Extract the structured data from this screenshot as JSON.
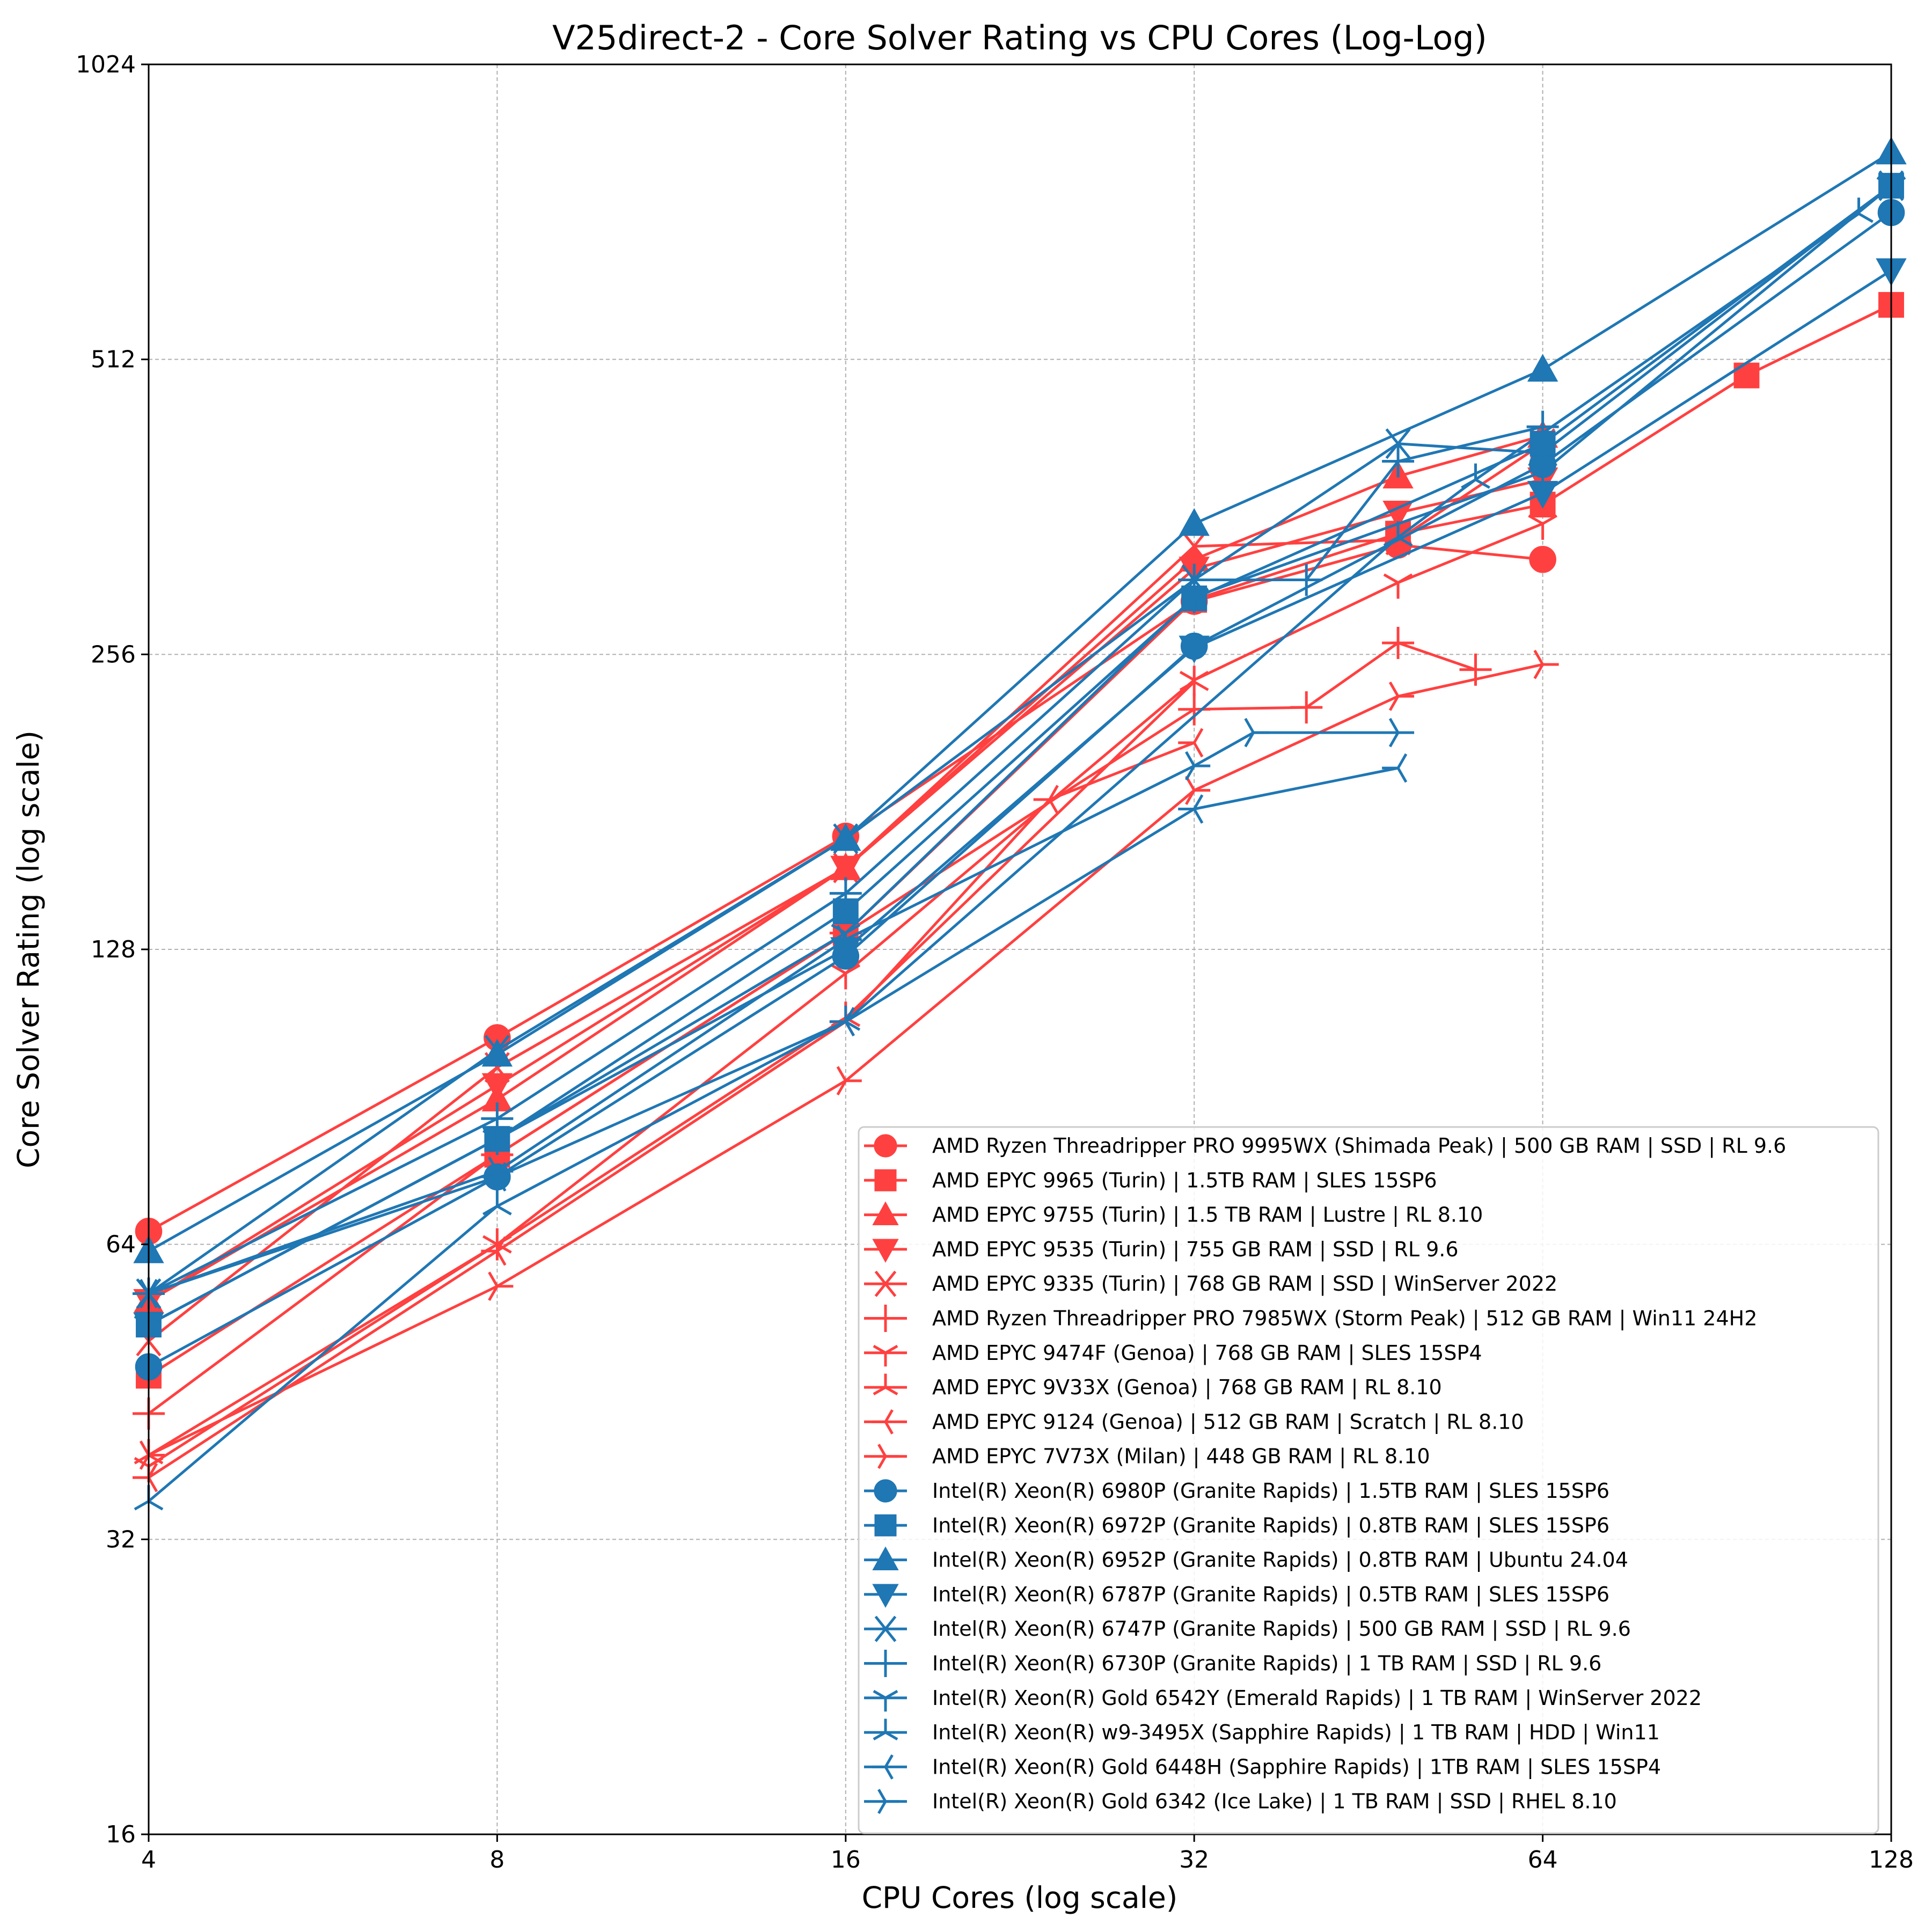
{
  "chart_data": {
    "type": "line",
    "title": "V25direct-2 - Core Solver Rating vs CPU Cores (Log-Log)",
    "xlabel": "CPU Cores (log scale)",
    "ylabel": "Core Solver Rating (log scale)",
    "xscale": "log2",
    "yscale": "log2",
    "xlim": [
      4,
      128
    ],
    "ylim": [
      16,
      1024
    ],
    "xticks": [
      4,
      8,
      16,
      32,
      64,
      128
    ],
    "yticks": [
      16,
      32,
      64,
      128,
      256,
      512,
      1024
    ],
    "grid": true,
    "legend_position": "lower-right",
    "colors": {
      "amd": "#ff4040",
      "intel": "#1f77b4"
    },
    "series": [
      {
        "name": "AMD Ryzen Threadripper PRO 9995WX (Shimada Peak) | 500 GB RAM | SSD | RL 9.6",
        "vendor": "amd",
        "marker": "circle",
        "x": [
          4,
          8,
          16,
          32,
          48,
          64
        ],
        "y": [
          66,
          104,
          167,
          290,
          331,
          320
        ]
      },
      {
        "name": "AMD EPYC 9965 (Turin) | 1.5TB RAM | SLES 15SP6",
        "vendor": "amd",
        "marker": "square",
        "x": [
          4,
          8,
          16,
          32,
          48,
          64,
          96,
          128
        ],
        "y": [
          47,
          79,
          133,
          291,
          340,
          364,
          493,
          582
        ]
      },
      {
        "name": "AMD EPYC 9755 (Turin) | 1.5 TB RAM | Lustre | RL 8.10",
        "vendor": "amd",
        "marker": "triangle-up",
        "x": [
          4,
          8,
          16,
          32,
          48,
          64
        ],
        "y": [
          56,
          90,
          155,
          320,
          389,
          428
        ]
      },
      {
        "name": "AMD EPYC 9535 (Turin) | 755 GB RAM | SSD | RL 9.6",
        "vendor": "amd",
        "marker": "triangle-down",
        "x": [
          4,
          8,
          16,
          32,
          48,
          64
        ],
        "y": [
          56,
          93,
          155,
          313,
          357,
          386
        ]
      },
      {
        "name": "AMD EPYC 9335 (Turin) | 768 GB RAM | SSD | WinServer 2022",
        "vendor": "amd",
        "marker": "x",
        "x": [
          4,
          8,
          16,
          32,
          48,
          64
        ],
        "y": [
          51,
          97,
          155,
          330,
          335,
          420
        ]
      },
      {
        "name": "AMD Ryzen Threadripper PRO 7985WX (Storm Peak) | 512 GB RAM | Win11 24H2",
        "vendor": "amd",
        "marker": "plus",
        "x": [
          4,
          8,
          16,
          32,
          40,
          48,
          56
        ],
        "y": [
          43,
          79,
          133,
          225,
          226,
          263,
          247
        ]
      },
      {
        "name": "AMD EPYC 9474F (Genoa) | 768 GB RAM | SLES 15SP4",
        "vendor": "amd",
        "marker": "tri-down",
        "x": [
          4,
          8,
          16,
          32,
          48,
          64
        ],
        "y": [
          38,
          64,
          121,
          241,
          303,
          348
        ]
      },
      {
        "name": "AMD EPYC 9V33X (Genoa) | 768 GB RAM | RL 8.10",
        "vendor": "amd",
        "marker": "tri-up",
        "x": [
          4,
          8,
          16,
          32
        ],
        "y": [
          39,
          64,
          109,
          240
        ]
      },
      {
        "name": "AMD EPYC 9124 (Genoa) | 512 GB RAM | Scratch | RL 8.10",
        "vendor": "amd",
        "marker": "tri-left",
        "x": [
          4,
          8,
          16,
          24,
          32
        ],
        "y": [
          37,
          63,
          108,
          182,
          208
        ]
      },
      {
        "name": "AMD EPYC 7V73X (Milan) | 448 GB RAM | RL 8.10",
        "vendor": "amd",
        "marker": "tri-right",
        "x": [
          4,
          8,
          16,
          32,
          48,
          64
        ],
        "y": [
          39,
          58,
          94,
          186,
          232,
          250
        ]
      },
      {
        "name": "Intel(R) Xeon(R) 6980P (Granite Rapids) | 1.5TB RAM | SLES 15SP6",
        "vendor": "intel",
        "marker": "circle",
        "x": [
          4,
          8,
          16,
          32,
          64,
          128
        ],
        "y": [
          48,
          75,
          126,
          261,
          400,
          723
        ]
      },
      {
        "name": "Intel(R) Xeon(R) 6972P (Granite Rapids) | 0.8TB RAM | SLES 15SP6",
        "vendor": "intel",
        "marker": "square",
        "x": [
          4,
          8,
          16,
          32,
          64,
          128
        ],
        "y": [
          53,
          82,
          140,
          292,
          420,
          770
        ]
      },
      {
        "name": "Intel(R) Xeon(R) 6952P (Granite Rapids) | 0.8TB RAM | Ubuntu 24.04",
        "vendor": "intel",
        "marker": "triangle-up",
        "x": [
          4,
          8,
          16,
          32,
          64,
          128
        ],
        "y": [
          63,
          100,
          166,
          348,
          500,
          833
        ]
      },
      {
        "name": "Intel(R) Xeon(R) 6787P (Granite Rapids) | 0.5TB RAM | SLES 15SP6",
        "vendor": "intel",
        "marker": "triangle-down",
        "x": [
          4,
          8,
          16,
          32,
          64,
          128
        ],
        "y": [
          53,
          82,
          128,
          260,
          374,
          631
        ]
      },
      {
        "name": "Intel(R) Xeon(R) 6747P (Granite Rapids) | 500 GB RAM | SSD | RL 9.6",
        "vendor": "intel",
        "marker": "x",
        "x": [
          4,
          8,
          16,
          32,
          48,
          64,
          128
        ],
        "y": [
          57,
          101,
          166,
          305,
          420,
          411,
          770
        ]
      },
      {
        "name": "Intel(R) Xeon(R) 6730P (Granite Rapids) | 1 TB RAM | SSD | RL 9.6",
        "vendor": "intel",
        "marker": "plus",
        "x": [
          4,
          8,
          16,
          32,
          40,
          48,
          64
        ],
        "y": [
          57,
          86,
          146,
          305,
          305,
          403,
          437
        ]
      },
      {
        "name": "Intel(R) Xeon(R) Gold 6542Y (Emerald Rapids) | 1 TB RAM | WinServer 2022",
        "vendor": "intel",
        "marker": "tri-down",
        "x": [
          4,
          8,
          16,
          32,
          64,
          128
        ],
        "y": [
          53,
          82,
          133,
          293,
          393,
          770
        ]
      },
      {
        "name": "Intel(R) Xeon(R) w9-3495X (Sapphire Rapids) | 1 TB RAM | HDD | Win11",
        "vendor": "intel",
        "marker": "tri-up",
        "x": [
          4,
          8,
          16,
          48,
          56,
          120
        ],
        "y": [
          35,
          70,
          108,
          337,
          386,
          721
        ]
      },
      {
        "name": "Intel(R) Xeon(R) Gold 6448H (Sapphire Rapids) | 1TB RAM | SLES 15SP4",
        "vendor": "intel",
        "marker": "tri-left",
        "x": [
          4,
          8,
          16,
          32,
          48
        ],
        "y": [
          57,
          75,
          108,
          178,
          196
        ]
      },
      {
        "name": "Intel(R) Xeon(R) Gold 6342 (Ice Lake) | 1 TB RAM | SSD | RHEL 8.10",
        "vendor": "intel",
        "marker": "tri-right",
        "x": [
          4,
          8,
          16,
          32,
          36,
          48
        ],
        "y": [
          57,
          76,
          131,
          197,
          213,
          213
        ]
      }
    ]
  }
}
